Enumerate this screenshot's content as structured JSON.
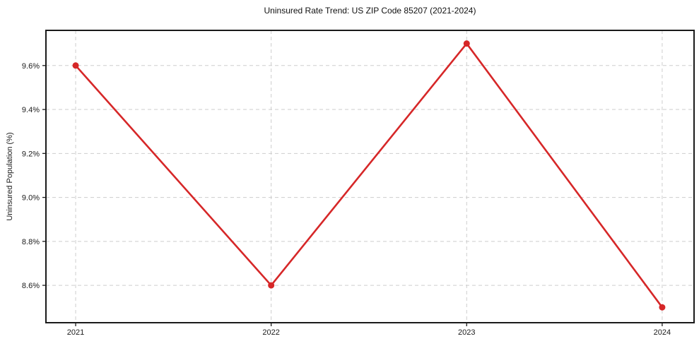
{
  "chart_data": {
    "type": "line",
    "title": "Uninsured Rate Trend: US ZIP Code 85207 (2021-2024)",
    "xlabel": "",
    "ylabel": "Uninsured Population (%)",
    "categories": [
      "2021",
      "2022",
      "2023",
      "2024"
    ],
    "x": [
      2021,
      2022,
      2023,
      2024
    ],
    "series": [
      {
        "name": "Uninsured Rate",
        "values": [
          9.6,
          8.6,
          9.7,
          8.5
        ],
        "color": "#d62728",
        "marker": "circle"
      }
    ],
    "x_ticks": [
      2021,
      2022,
      2023,
      2024
    ],
    "x_tick_labels": [
      "2021",
      "2022",
      "2023",
      "2024"
    ],
    "y_ticks": [
      8.6,
      8.8,
      9.0,
      9.2,
      9.4,
      9.6
    ],
    "y_tick_labels": [
      "8.6%",
      "8.8%",
      "9.0%",
      "9.2%",
      "9.4%",
      "9.6%"
    ],
    "xlim": [
      2020.848,
      2024.163
    ],
    "ylim": [
      8.43,
      9.76
    ],
    "grid": true,
    "grid_style": "dashed",
    "legend": "none",
    "colors": {
      "line": "#d62728",
      "grid": "#cdcdcd",
      "axes": "#1a1a1a",
      "background": "#ffffff",
      "text": "#1a1a1a"
    }
  }
}
